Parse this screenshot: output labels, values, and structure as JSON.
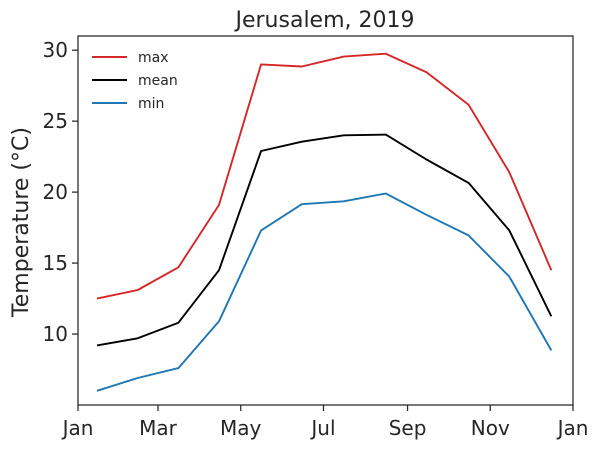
{
  "chart_data": {
    "type": "line",
    "title": "Jerusalem, 2019",
    "xlabel": "",
    "ylabel": "Temperature (°C)",
    "x": [
      "2019-01-15",
      "2019-02-14",
      "2019-03-16",
      "2019-04-15",
      "2019-05-16",
      "2019-06-15",
      "2019-07-16",
      "2019-08-16",
      "2019-09-15",
      "2019-10-16",
      "2019-11-15",
      "2019-12-16"
    ],
    "series": [
      {
        "name": "max",
        "color": "#d62728",
        "values": [
          12.5,
          13.1,
          14.7,
          19.1,
          29.0,
          28.85,
          29.55,
          29.75,
          28.45,
          26.15,
          21.4,
          14.5
        ]
      },
      {
        "name": "mean",
        "color": "#000000",
        "values": [
          9.2,
          9.7,
          10.8,
          14.5,
          22.9,
          23.55,
          24.0,
          24.05,
          22.3,
          20.65,
          17.3,
          11.25
        ]
      },
      {
        "name": "min",
        "color": "#1f77b4",
        "values": [
          6.0,
          6.9,
          7.6,
          10.9,
          17.3,
          19.15,
          19.35,
          19.9,
          18.4,
          16.95,
          14.05,
          8.85
        ]
      }
    ],
    "xlim": [
      "2019-01-01",
      "2020-01-01"
    ],
    "ylim": [
      5.0,
      31.0
    ],
    "xticks": [
      {
        "date": "2019-01-01",
        "label": "Jan"
      },
      {
        "date": "2019-03-01",
        "label": "Mar"
      },
      {
        "date": "2019-05-01",
        "label": "May"
      },
      {
        "date": "2019-07-01",
        "label": "Jul"
      },
      {
        "date": "2019-09-01",
        "label": "Sep"
      },
      {
        "date": "2019-11-01",
        "label": "Nov"
      },
      {
        "date": "2020-01-01",
        "label": "Jan"
      }
    ],
    "yticks": [
      10,
      15,
      20,
      25,
      30
    ],
    "grid": false,
    "legend_position": "top-left"
  }
}
